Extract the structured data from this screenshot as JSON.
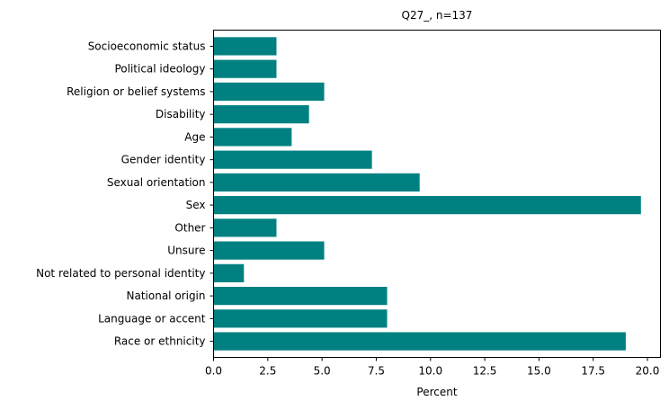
{
  "chart_data": {
    "type": "bar",
    "orientation": "horizontal",
    "title": "Q27_, n=137",
    "xlabel": "Percent",
    "ylabel": "",
    "xlim": [
      0,
      20.6
    ],
    "xticks": [
      "0.0",
      "2.5",
      "5.0",
      "7.5",
      "10.0",
      "12.5",
      "15.0",
      "17.5",
      "20.0"
    ],
    "grid": false,
    "bar_color": "#008080",
    "categories": [
      "Race or ethnicity",
      "Language or accent",
      "National origin",
      "Not related to personal identity",
      "Unsure",
      "Other",
      "Sex",
      "Sexual orientation",
      "Gender identity",
      "Age",
      "Disability",
      "Religion or belief systems",
      "Political ideology",
      "Socioeconomic status"
    ],
    "values": [
      19.0,
      8.0,
      8.0,
      1.4,
      5.1,
      2.9,
      19.7,
      9.5,
      7.3,
      3.6,
      4.4,
      5.1,
      2.9,
      2.9
    ]
  }
}
